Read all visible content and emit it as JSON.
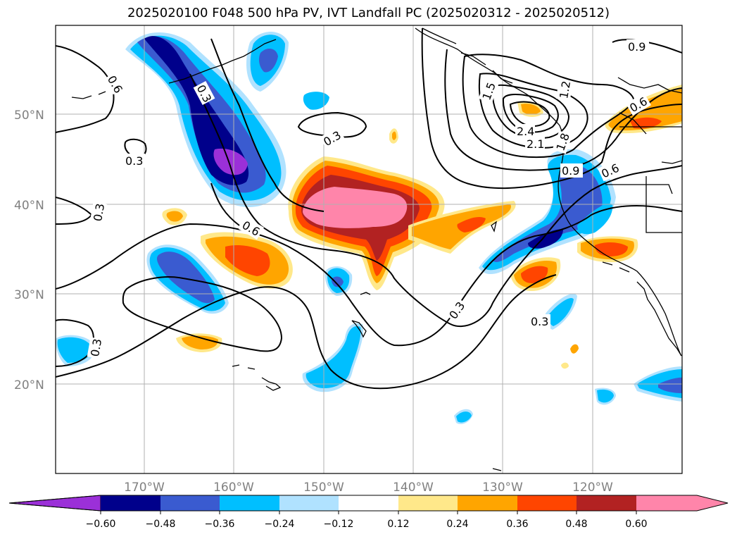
{
  "title": "2025020100 F048 500 hPa PV, IVT Landfall PC (2025020312 - 2025020512)",
  "lat_labels": [
    "50°N",
    "40°N",
    "30°N",
    "20°N"
  ],
  "lon_labels": [
    "170°W",
    "160°W",
    "150°W",
    "140°W",
    "130°W",
    "120°W"
  ],
  "colorbar": {
    "ticks": [
      "−0.60",
      "−0.48",
      "−0.36",
      "−0.24",
      "−0.12",
      "0.12",
      "0.24",
      "0.36",
      "0.48",
      "0.60"
    ],
    "colors": [
      "#9b30d8",
      "#00008b",
      "#3a5bd0",
      "#00bfff",
      "#b0e2ff",
      "#ffffff",
      "#ffe88a",
      "#ffa500",
      "#ff4500",
      "#b22222",
      "#ff85aa"
    ]
  },
  "contour_labels": [
    "0.3",
    "0.6",
    "0.9",
    "1.2",
    "1.5",
    "1.8",
    "2.1",
    "2.4"
  ],
  "colors": {
    "land_outline": "#000000",
    "contour": "#000000",
    "grid": "#b0b0b0"
  }
}
